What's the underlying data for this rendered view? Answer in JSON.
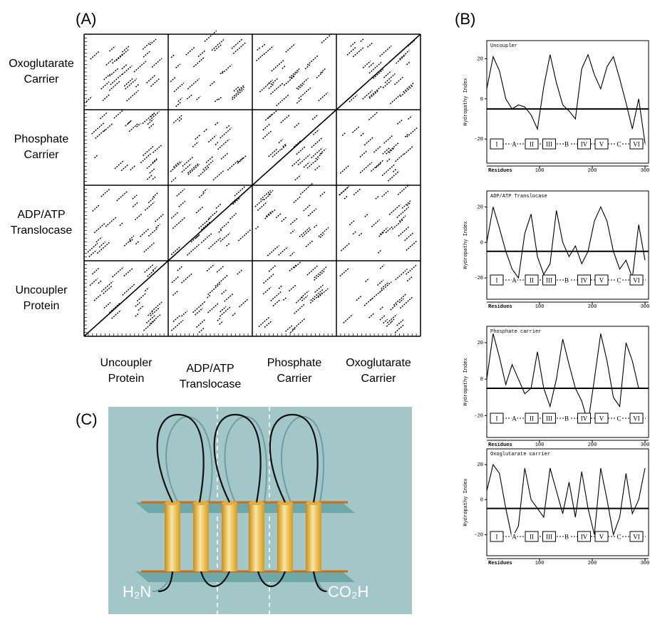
{
  "panel_a": {
    "label": "(A)",
    "row_labels": [
      [
        "Oxoglutarate",
        "Carrier"
      ],
      [
        "Phosphate",
        "Carrier"
      ],
      [
        "ADP/ATP",
        "Translocase"
      ],
      [
        "Uncoupler",
        "Protein"
      ]
    ],
    "column_labels": [
      [
        "Uncoupler",
        "Protein"
      ],
      [
        "ADP/ATP",
        "Translocase"
      ],
      [
        "Phosphate",
        "Carrier"
      ],
      [
        "Oxoglutarate",
        "Carrier"
      ]
    ]
  },
  "panel_b": {
    "label": "(B)",
    "y_axis_label": "Hydropathy Index",
    "x_axis_label": "Residues",
    "ylim": [
      -32,
      29
    ],
    "yticks": [
      20,
      0,
      -20
    ],
    "xlim": [
      0,
      300
    ],
    "xticks": [
      100,
      200,
      300
    ],
    "x": [
      0,
      12,
      24,
      36,
      48,
      60,
      72,
      84,
      96,
      108,
      120,
      132,
      144,
      156,
      168,
      180,
      192,
      204,
      216,
      228,
      240,
      252,
      264,
      276,
      288,
      300
    ],
    "plots": [
      {
        "title": "Uncoupler",
        "reference_line": -5,
        "segments": [
          "I",
          "A",
          "II",
          "III",
          "B",
          "IV",
          "V",
          "C",
          "VI"
        ],
        "values": [
          5,
          21,
          14,
          0,
          -5,
          -3,
          -4,
          -8,
          -15,
          6,
          22,
          8,
          -3,
          -6,
          -10,
          15,
          22,
          12,
          5,
          16,
          21,
          10,
          -2,
          -15,
          0,
          -22
        ]
      },
      {
        "title": "ADP/ATP  Translocase",
        "reference_line": -5,
        "segments": [
          "I",
          "A",
          "II",
          "III",
          "B",
          "IV",
          "V",
          "C",
          "VI"
        ],
        "values": [
          0,
          20,
          8,
          -5,
          -15,
          -20,
          5,
          16,
          -8,
          -18,
          -12,
          18,
          0,
          -8,
          -2,
          -12,
          -5,
          12,
          20,
          12,
          -5,
          -15,
          -10,
          -20,
          10,
          -10
        ]
      },
      {
        "title": "Phosphate  carrier",
        "reference_line": -5,
        "segments": [
          "I",
          "A",
          "II",
          "III",
          "B",
          "IV",
          "V",
          "C",
          "VI"
        ],
        "values": [
          0,
          25,
          12,
          -3,
          8,
          0,
          -8,
          -5,
          15,
          -5,
          -15,
          0,
          22,
          8,
          -5,
          -12,
          -24,
          0,
          25,
          10,
          -10,
          -15,
          20,
          10,
          -5,
          -5
        ]
      },
      {
        "title": "Oxoglutarate  carrier",
        "reference_line": -5,
        "segments": [
          "I",
          "A",
          "II",
          "III",
          "B",
          "IV",
          "V",
          "C",
          "VI"
        ],
        "values": [
          5,
          20,
          15,
          -5,
          -22,
          -15,
          18,
          0,
          -5,
          -10,
          18,
          5,
          -8,
          10,
          -10,
          16,
          -5,
          -20,
          18,
          0,
          -20,
          -10,
          15,
          -8,
          0,
          18
        ]
      }
    ]
  },
  "panel_c": {
    "label": "(C)",
    "n_terminus": "H₂N",
    "c_terminus": "CO₂H"
  }
}
